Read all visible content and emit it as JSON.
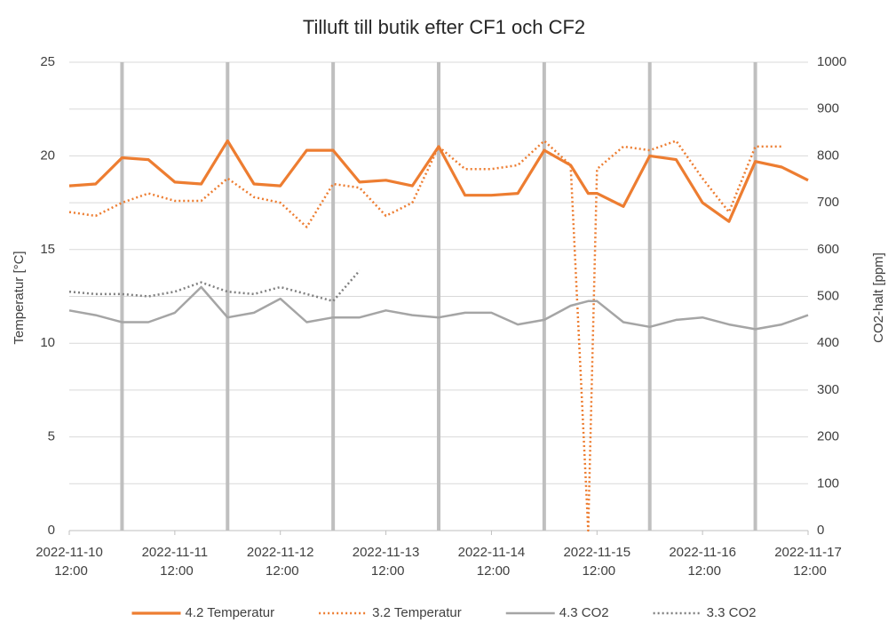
{
  "chart_data": {
    "type": "line",
    "title": "Tilluft till butik efter CF1 och CF2",
    "ylabel": "Temperatur  [°C]",
    "y2label": "CO2-halt [ppm]",
    "x": [
      "2022-11-10 12:00",
      "2022-11-10 18:00",
      "2022-11-11 00:00",
      "2022-11-11 06:00",
      "2022-11-11 12:00",
      "2022-11-11 18:00",
      "2022-11-12 00:00",
      "2022-11-12 06:00",
      "2022-11-12 12:00",
      "2022-11-12 18:00",
      "2022-11-13 00:00",
      "2022-11-13 06:00",
      "2022-11-13 12:00",
      "2022-11-13 18:00",
      "2022-11-14 00:00",
      "2022-11-14 06:00",
      "2022-11-14 12:00",
      "2022-11-14 18:00",
      "2022-11-15 00:00",
      "2022-11-15 06:00",
      "2022-11-15 10:00",
      "2022-11-15 12:00",
      "2022-11-15 18:00",
      "2022-11-16 00:00",
      "2022-11-16 06:00",
      "2022-11-16 12:00",
      "2022-11-16 18:00",
      "2022-11-17 00:00",
      "2022-11-17 06:00",
      "2022-11-17 12:00"
    ],
    "xlim": [
      "2022-11-10 12:00",
      "2022-11-17 12:00"
    ],
    "xticks": [
      "2022-11-10 12:00",
      "2022-11-11 12:00",
      "2022-11-12 12:00",
      "2022-11-13 12:00",
      "2022-11-14 12:00",
      "2022-11-15 12:00",
      "2022-11-16 12:00",
      "2022-11-17 12:00"
    ],
    "ylim": [
      0,
      25
    ],
    "yticks": [
      0,
      5,
      10,
      15,
      20,
      25
    ],
    "y2lim": [
      0,
      1000
    ],
    "y2ticks": [
      0,
      100,
      200,
      300,
      400,
      500,
      600,
      700,
      800,
      900,
      1000
    ],
    "grid": true,
    "legend": "bottom",
    "series": [
      {
        "name": "4.2 Temperatur",
        "color": "#ED7D31",
        "style": "solid",
        "axis": "y",
        "values": [
          18.4,
          18.5,
          19.9,
          19.8,
          18.6,
          18.5,
          20.8,
          18.5,
          18.4,
          20.3,
          20.3,
          18.6,
          18.7,
          18.4,
          20.5,
          17.9,
          17.9,
          18.0,
          20.3,
          19.5,
          18.0,
          18.0,
          17.3,
          20.0,
          19.8,
          17.5,
          16.5,
          19.7,
          19.4,
          18.7
        ]
      },
      {
        "name": "3.2 Temperatur",
        "color": "#ED7D31",
        "style": "dotted",
        "axis": "y",
        "values": [
          17.0,
          16.8,
          17.5,
          18.0,
          17.6,
          17.6,
          18.8,
          17.8,
          17.5,
          16.2,
          18.5,
          18.3,
          16.8,
          17.5,
          20.5,
          19.3,
          19.3,
          19.5,
          20.8,
          19.5,
          0,
          19.3,
          20.5,
          20.3,
          20.8,
          18.8,
          17.0,
          20.5,
          20.5,
          null
        ]
      },
      {
        "name": "4.3 CO2",
        "color": "#A5A5A5",
        "style": "solid",
        "axis": "y2",
        "values": [
          470,
          460,
          445,
          445,
          465,
          520,
          455,
          465,
          495,
          445,
          455,
          455,
          470,
          460,
          455,
          465,
          465,
          440,
          450,
          480,
          490,
          490,
          445,
          435,
          450,
          455,
          440,
          430,
          440,
          460
        ]
      },
      {
        "name": "3.3 CO2",
        "color": "#7F7F7F",
        "style": "dotted",
        "axis": "y2",
        "values": [
          510,
          505,
          505,
          500,
          510,
          530,
          510,
          505,
          520,
          505,
          490,
          555,
          null,
          null,
          null,
          null,
          null,
          null,
          null,
          null,
          null,
          null,
          null,
          null,
          null,
          null,
          null,
          null,
          null,
          null
        ]
      }
    ]
  }
}
